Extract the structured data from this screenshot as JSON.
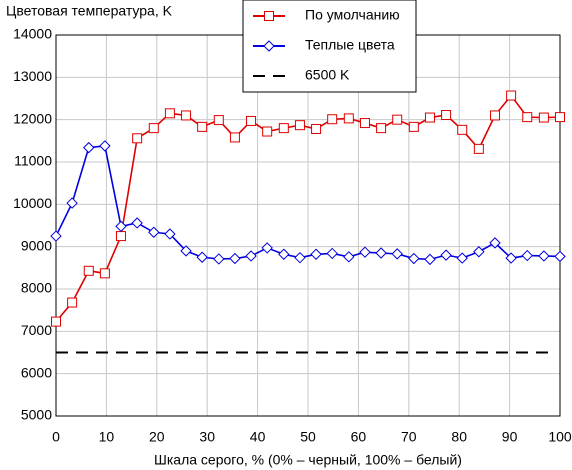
{
  "chart_data": {
    "type": "line",
    "title": "Цветовая температура, K",
    "x_label": "Шкала серого, % (0% – черный, 100% – белый)",
    "xlim": [
      0,
      100
    ],
    "xticks": [
      0,
      10,
      20,
      30,
      40,
      50,
      60,
      70,
      80,
      90,
      100
    ],
    "ylim": [
      5000,
      14000
    ],
    "yticks": [
      5000,
      6000,
      7000,
      8000,
      9000,
      10000,
      11000,
      12000,
      13000,
      14000
    ],
    "grid": true,
    "legend": "top",
    "series": [
      {
        "name": "По умолчанию",
        "color": "#e00000",
        "marker": "square",
        "x": [
          0,
          3.2,
          6.5,
          9.7,
          12.9,
          16.1,
          19.4,
          22.6,
          25.8,
          29,
          32.3,
          35.5,
          38.7,
          41.9,
          45.2,
          48.4,
          51.6,
          54.8,
          58.1,
          61.3,
          64.5,
          67.7,
          71,
          74.2,
          77.4,
          80.6,
          83.9,
          87.1,
          90.3,
          93.5,
          96.8,
          100
        ],
        "values": [
          7230,
          7680,
          8430,
          8370,
          9250,
          11560,
          11800,
          12150,
          12100,
          11830,
          11990,
          11580,
          11970,
          11720,
          11800,
          11870,
          11780,
          12010,
          12030,
          11920,
          11800,
          12000,
          11830,
          12050,
          12110,
          11760,
          11310,
          12100,
          12570,
          12060,
          12050,
          12060
        ]
      },
      {
        "name": "Теплые цвета",
        "color": "#0000e0",
        "marker": "diamond",
        "x": [
          0,
          3.2,
          6.5,
          9.7,
          12.9,
          16.1,
          19.4,
          22.6,
          25.8,
          29,
          32.3,
          35.5,
          38.7,
          41.9,
          45.2,
          48.4,
          51.6,
          54.8,
          58.1,
          61.3,
          64.5,
          67.7,
          71,
          74.2,
          77.4,
          80.6,
          83.9,
          87.1,
          90.3,
          93.5,
          96.8,
          100
        ],
        "values": [
          9250,
          10030,
          11340,
          11380,
          9480,
          9560,
          9340,
          9300,
          8900,
          8750,
          8710,
          8720,
          8780,
          8970,
          8820,
          8740,
          8820,
          8840,
          8760,
          8870,
          8850,
          8830,
          8720,
          8700,
          8800,
          8730,
          8880,
          9090,
          8730,
          8790,
          8780,
          8770
        ]
      },
      {
        "name": "6500 K",
        "color": "#000000",
        "marker": "none",
        "dash": true,
        "x": [
          0,
          99
        ],
        "values": [
          6500,
          6500
        ]
      }
    ]
  }
}
